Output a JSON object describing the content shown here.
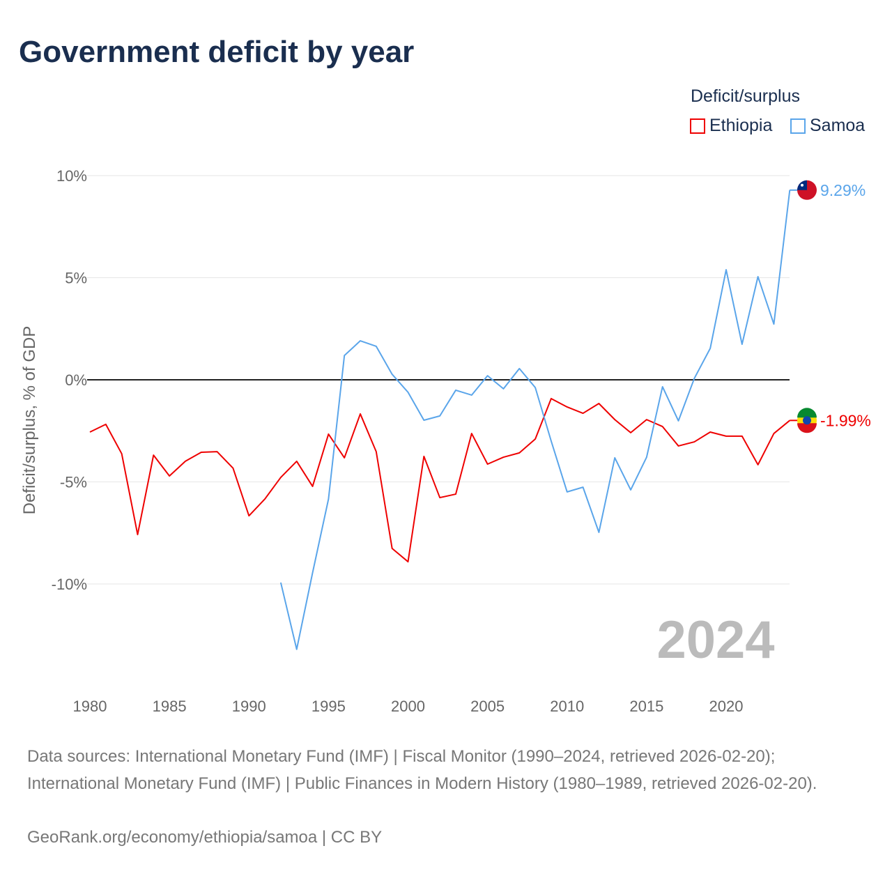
{
  "chart_data": {
    "type": "line",
    "title": "Government deficit by year",
    "ylabel": "Deficit/surplus, % of GDP",
    "xlabel": "",
    "legend_title": "Deficit/surplus",
    "legend_position": "top-right",
    "ylim": [
      -14.5,
      10.5
    ],
    "xlim": [
      1980,
      2024
    ],
    "yticks": [
      10,
      5,
      0,
      -5,
      -10
    ],
    "ytick_labels": [
      "10%",
      "5%",
      "0%",
      "-5%",
      "-10%"
    ],
    "xticks": [
      1980,
      1985,
      1990,
      1995,
      2000,
      2005,
      2010,
      2015,
      2020
    ],
    "xtick_labels": [
      "1980",
      "1985",
      "1990",
      "1995",
      "2000",
      "2005",
      "2010",
      "2015",
      "2020"
    ],
    "year_watermark": "2024",
    "grid": true,
    "series": [
      {
        "name": "Ethiopia",
        "color": "#ee0000",
        "end_label": "-1.99%",
        "x": [
          1980,
          1981,
          1982,
          1983,
          1984,
          1985,
          1986,
          1987,
          1988,
          1989,
          1990,
          1991,
          1992,
          1993,
          1994,
          1995,
          1996,
          1997,
          1998,
          1999,
          2000,
          2001,
          2002,
          2003,
          2004,
          2005,
          2006,
          2007,
          2008,
          2009,
          2010,
          2011,
          2012,
          2013,
          2014,
          2015,
          2016,
          2017,
          2018,
          2019,
          2020,
          2021,
          2022,
          2023,
          2024
        ],
        "values": [
          -2.56,
          -2.18,
          -3.62,
          -7.58,
          -3.69,
          -4.71,
          -3.99,
          -3.55,
          -3.52,
          -4.33,
          -6.66,
          -5.84,
          -4.78,
          -3.99,
          -5.22,
          -2.66,
          -3.82,
          -1.67,
          -3.52,
          -8.26,
          -8.91,
          -3.75,
          -5.77,
          -5.6,
          -2.63,
          -4.13,
          -3.79,
          -3.58,
          -2.9,
          -0.92,
          -1.33,
          -1.64,
          -1.16,
          -1.95,
          -2.59,
          -1.95,
          -2.29,
          -3.24,
          -3.04,
          -2.56,
          -2.76,
          -2.76,
          -4.16,
          -2.63,
          -1.99
        ]
      },
      {
        "name": "Samoa",
        "color": "#5aa5ea",
        "end_label": "9.29%",
        "x": [
          1992,
          1993,
          1994,
          1995,
          1996,
          1997,
          1998,
          1999,
          2000,
          2001,
          2002,
          2003,
          2004,
          2005,
          2006,
          2007,
          2008,
          2009,
          2010,
          2011,
          2012,
          2013,
          2014,
          2015,
          2016,
          2017,
          2018,
          2019,
          2020,
          2021,
          2022,
          2023,
          2024
        ],
        "values": [
          -9.93,
          -13.2,
          -9.45,
          -5.84,
          1.19,
          1.91,
          1.64,
          0.27,
          -0.61,
          -1.98,
          -1.77,
          -0.51,
          -0.75,
          0.2,
          -0.44,
          0.55,
          -0.38,
          -3.0,
          -5.49,
          -5.26,
          -7.47,
          -3.82,
          -5.39,
          -3.79,
          -0.34,
          -2.01,
          0.07,
          1.54,
          5.39,
          1.74,
          5.05,
          2.73,
          9.29
        ]
      }
    ]
  },
  "footer": {
    "sources": "Data sources: International Monetary Fund (IMF) | Fiscal Monitor (1990–2024, retrieved 2026-02-20); International Monetary Fund (IMF) | Public Finances in Modern History (1980–1989, retrieved 2026-02-20).",
    "credit": "GeoRank.org/economy/ethiopia/samoa | CC BY"
  }
}
